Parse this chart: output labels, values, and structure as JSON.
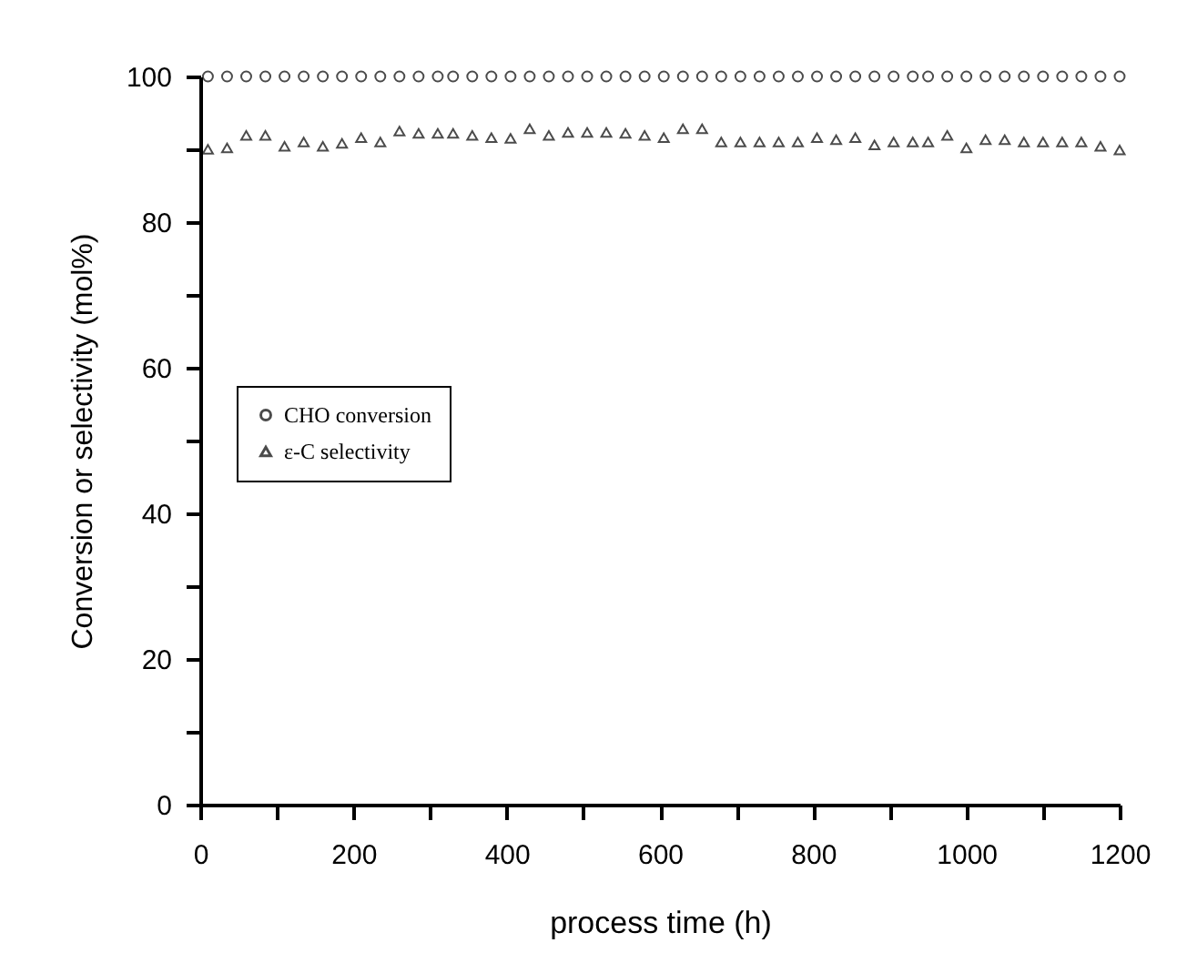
{
  "chart_data": {
    "type": "scatter",
    "xlabel": "process time (h)",
    "ylabel": "Conversion or selectivity (mol%)",
    "x": [
      10,
      35,
      60,
      85,
      110,
      135,
      160,
      185,
      210,
      235,
      260,
      285,
      310,
      330,
      355,
      380,
      405,
      430,
      455,
      480,
      505,
      530,
      555,
      580,
      605,
      630,
      655,
      680,
      705,
      730,
      755,
      780,
      805,
      830,
      855,
      880,
      905,
      930,
      950,
      975,
      1000,
      1025,
      1050,
      1075,
      1100,
      1125,
      1150,
      1175,
      1200
    ],
    "series": [
      {
        "name": "CHO conversion",
        "color": "#000000",
        "marker": "circle",
        "values": [
          100,
          100,
          100,
          100,
          100,
          100,
          100,
          100,
          100,
          100,
          100,
          100,
          100,
          100,
          100,
          100,
          100,
          100,
          100,
          100,
          100,
          100,
          100,
          100,
          100,
          100,
          100,
          100,
          100,
          100,
          100,
          100,
          100,
          100,
          100,
          100,
          100,
          100,
          100,
          100,
          100,
          100,
          100,
          100,
          100,
          100,
          100,
          100,
          100
        ]
      },
      {
        "name": "ε-C selectivity",
        "color": "#000000",
        "marker": "triangle",
        "values": [
          90,
          90.2,
          91.9,
          91.9,
          90.4,
          91,
          90.4,
          90.8,
          91.6,
          91,
          92.5,
          92.2,
          92.2,
          92.2,
          91.9,
          91.6,
          91.5,
          92.8,
          91.9,
          92.3,
          92.3,
          92.3,
          92.2,
          91.9,
          91.6,
          92.8,
          92.8,
          91,
          91,
          91,
          91,
          91,
          91.6,
          91.3,
          91.6,
          90.6,
          91,
          91,
          91,
          91.9,
          90.2,
          91.3,
          91.3,
          91,
          91,
          91,
          91,
          90.4,
          89.9
        ]
      }
    ],
    "xlim": [
      0,
      1200
    ],
    "xticks": [
      0,
      {
        "value": 100,
        "label": null
      },
      200,
      {
        "value": 300,
        "label": null
      },
      400,
      {
        "value": 500,
        "label": null
      },
      600,
      {
        "value": 700,
        "label": null
      },
      800,
      {
        "value": 900,
        "label": null
      },
      1000,
      {
        "value": 1100,
        "label": null
      },
      1200
    ],
    "ylim": [
      0,
      100
    ],
    "yticks": [
      0,
      {
        "value": 10,
        "label": null
      },
      20,
      {
        "value": 30,
        "label": null
      },
      40,
      {
        "value": 50,
        "label": null
      },
      60,
      {
        "value": 70,
        "label": null
      },
      80,
      {
        "value": 90,
        "label": null
      },
      100
    ],
    "legend": "left",
    "grid": false
  }
}
